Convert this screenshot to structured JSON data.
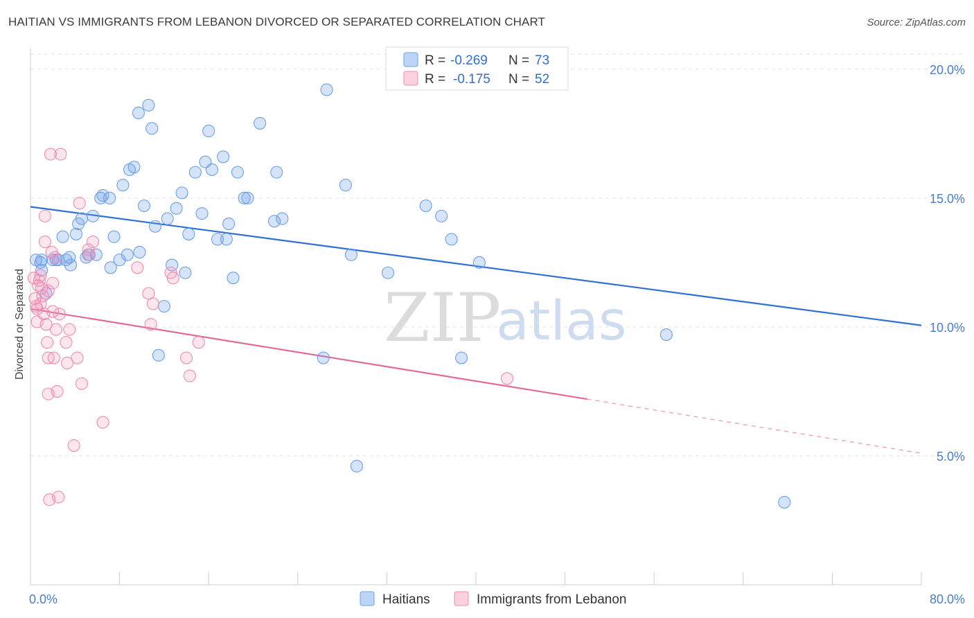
{
  "header": {
    "title": "HAITIAN VS IMMIGRANTS FROM LEBANON DIVORCED OR SEPARATED CORRELATION CHART",
    "source": "Source: ZipAtlas.com"
  },
  "watermark": {
    "part1": "ZIP",
    "part2": "atlas"
  },
  "legend_box": {
    "rows": [
      {
        "r_label": "R =",
        "r_value": "-0.269",
        "n_label": "N =",
        "n_value": "73",
        "color": "#6b9fe8"
      },
      {
        "r_label": "R =",
        "r_value": "-0.175",
        "n_label": "N =",
        "n_value": "52",
        "color": "#f08cb0"
      }
    ]
  },
  "chart_data": {
    "type": "scatter",
    "title": "HAITIAN VS IMMIGRANTS FROM LEBANON DIVORCED OR SEPARATED CORRELATION CHART",
    "xlabel": "",
    "ylabel": "Divorced or Separated",
    "xlim": [
      0,
      80
    ],
    "ylim": [
      0,
      20.8
    ],
    "x_tick_labels": [
      "0.0%",
      "80.0%"
    ],
    "y_ticks": [
      5,
      10,
      15,
      20
    ],
    "y_tick_labels": [
      "5.0%",
      "10.0%",
      "15.0%",
      "20.0%"
    ],
    "grid": true,
    "legend_placement": "top-center",
    "series": [
      {
        "name": "Haitians",
        "color": "#6b9fe8",
        "trend": {
          "x": [
            0,
            80
          ],
          "y": [
            14.66,
            10.06
          ],
          "dashed_from": null
        },
        "points": [
          [
            0.5,
            12.6
          ],
          [
            0.9,
            12.5
          ],
          [
            1.0,
            12.6
          ],
          [
            1.4,
            11.3
          ],
          [
            2.0,
            12.6
          ],
          [
            2.3,
            12.6
          ],
          [
            2.9,
            13.5
          ],
          [
            3.2,
            12.6
          ],
          [
            3.5,
            12.7
          ],
          [
            3.6,
            12.4
          ],
          [
            4.1,
            13.6
          ],
          [
            4.3,
            14.0
          ],
          [
            4.6,
            14.2
          ],
          [
            5.0,
            12.7
          ],
          [
            5.2,
            12.8
          ],
          [
            5.6,
            14.3
          ],
          [
            5.9,
            12.8
          ],
          [
            6.3,
            15.0
          ],
          [
            6.5,
            15.1
          ],
          [
            7.1,
            15.0
          ],
          [
            7.2,
            12.3
          ],
          [
            7.5,
            13.5
          ],
          [
            8.0,
            12.6
          ],
          [
            8.3,
            15.5
          ],
          [
            8.7,
            12.8
          ],
          [
            8.9,
            16.1
          ],
          [
            9.3,
            16.2
          ],
          [
            9.7,
            18.3
          ],
          [
            9.8,
            12.9
          ],
          [
            10.2,
            14.7
          ],
          [
            10.6,
            18.6
          ],
          [
            10.9,
            17.7
          ],
          [
            11.2,
            13.9
          ],
          [
            11.5,
            8.9
          ],
          [
            12.0,
            10.8
          ],
          [
            12.3,
            14.2
          ],
          [
            12.7,
            12.4
          ],
          [
            13.1,
            14.6
          ],
          [
            13.6,
            15.2
          ],
          [
            13.9,
            12.1
          ],
          [
            14.2,
            13.6
          ],
          [
            14.8,
            16.0
          ],
          [
            15.4,
            14.4
          ],
          [
            15.7,
            16.4
          ],
          [
            16.0,
            17.6
          ],
          [
            16.3,
            16.1
          ],
          [
            16.8,
            13.4
          ],
          [
            17.3,
            16.6
          ],
          [
            17.6,
            13.4
          ],
          [
            17.8,
            14.0
          ],
          [
            18.2,
            11.9
          ],
          [
            18.6,
            16.0
          ],
          [
            19.2,
            15.0
          ],
          [
            19.5,
            15.0
          ],
          [
            20.6,
            17.9
          ],
          [
            21.9,
            14.1
          ],
          [
            22.1,
            16.0
          ],
          [
            22.6,
            14.2
          ],
          [
            26.3,
            8.8
          ],
          [
            26.6,
            19.2
          ],
          [
            28.3,
            15.5
          ],
          [
            28.8,
            12.8
          ],
          [
            29.3,
            4.6
          ],
          [
            32.1,
            12.1
          ],
          [
            35.5,
            14.7
          ],
          [
            36.9,
            14.3
          ],
          [
            37.8,
            13.4
          ],
          [
            38.7,
            8.8
          ],
          [
            40.3,
            12.5
          ],
          [
            57.1,
            9.7
          ],
          [
            67.7,
            3.2
          ],
          [
            1.0,
            12.2
          ],
          [
            2.5,
            12.6
          ]
        ]
      },
      {
        "name": "Immigrants from Lebanon",
        "color": "#f08cb0",
        "trend": {
          "x": [
            0,
            80
          ],
          "y": [
            10.7,
            5.1
          ],
          "dashed_from": 50
        },
        "points": [
          [
            0.3,
            11.9
          ],
          [
            0.4,
            11.1
          ],
          [
            0.5,
            10.8
          ],
          [
            0.6,
            10.7
          ],
          [
            0.6,
            10.2
          ],
          [
            0.7,
            11.6
          ],
          [
            0.8,
            11.8
          ],
          [
            0.9,
            12.0
          ],
          [
            1.0,
            11.5
          ],
          [
            1.1,
            11.2
          ],
          [
            1.2,
            10.5
          ],
          [
            1.3,
            14.3
          ],
          [
            1.3,
            13.3
          ],
          [
            1.4,
            10.1
          ],
          [
            1.5,
            9.4
          ],
          [
            1.6,
            8.8
          ],
          [
            1.6,
            7.4
          ],
          [
            1.7,
            3.3
          ],
          [
            1.8,
            16.7
          ],
          [
            1.9,
            12.9
          ],
          [
            2.0,
            11.7
          ],
          [
            2.0,
            10.6
          ],
          [
            2.1,
            8.8
          ],
          [
            2.2,
            12.7
          ],
          [
            2.3,
            9.9
          ],
          [
            2.4,
            7.5
          ],
          [
            2.5,
            3.4
          ],
          [
            2.6,
            10.5
          ],
          [
            2.7,
            16.7
          ],
          [
            3.2,
            9.4
          ],
          [
            3.3,
            8.6
          ],
          [
            3.5,
            9.9
          ],
          [
            3.9,
            5.4
          ],
          [
            4.2,
            8.8
          ],
          [
            4.4,
            14.8
          ],
          [
            4.6,
            7.8
          ],
          [
            5.2,
            13.0
          ],
          [
            5.3,
            12.8
          ],
          [
            5.6,
            13.3
          ],
          [
            6.5,
            6.3
          ],
          [
            9.6,
            12.3
          ],
          [
            10.6,
            11.3
          ],
          [
            10.8,
            10.1
          ],
          [
            11.0,
            10.9
          ],
          [
            12.6,
            12.1
          ],
          [
            12.8,
            11.9
          ],
          [
            14.0,
            8.8
          ],
          [
            14.3,
            8.1
          ],
          [
            15.1,
            9.4
          ],
          [
            42.8,
            8.0
          ],
          [
            0.9,
            10.9
          ],
          [
            1.6,
            11.4
          ]
        ]
      }
    ]
  }
}
